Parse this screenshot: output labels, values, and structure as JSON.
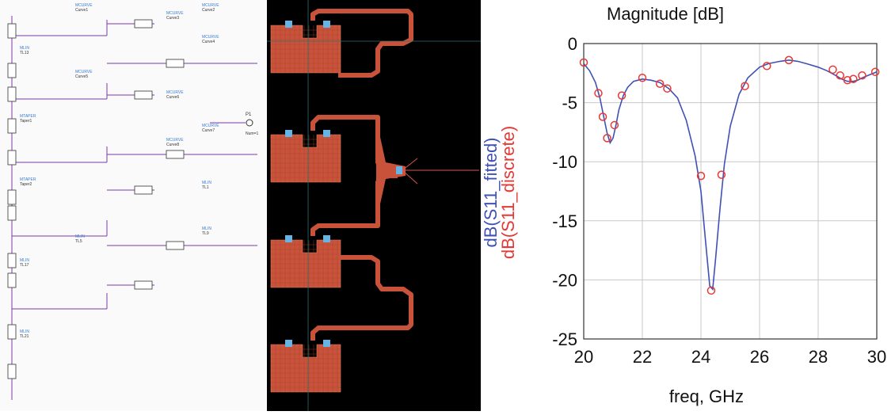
{
  "schematic": {
    "components": [
      {
        "type": "MCURVE",
        "name": "Curve1"
      },
      {
        "type": "MCURVE",
        "name": "Curve2"
      },
      {
        "type": "MCURVE",
        "name": "Curve3"
      },
      {
        "type": "MCURVE",
        "name": "Curve4"
      },
      {
        "type": "MCURVE",
        "name": "Curve5"
      },
      {
        "type": "MCURVE",
        "name": "Curve6"
      },
      {
        "type": "MCURVE",
        "name": "Curve7"
      },
      {
        "type": "MCURVE",
        "name": "Curve8"
      },
      {
        "type": "MLIN",
        "name": "TL1"
      },
      {
        "type": "MLIN",
        "name": "TL5"
      },
      {
        "type": "MLIN",
        "name": "TL9"
      },
      {
        "type": "MLIN",
        "name": "TL13"
      },
      {
        "type": "MTAPER",
        "name": "Taper1"
      },
      {
        "type": "MTAPER",
        "name": "Taper2"
      },
      {
        "type": "MLIN",
        "name": "TL17"
      },
      {
        "type": "MLIN",
        "name": "TL21"
      }
    ],
    "port_label": "P1",
    "port_sub": "Num=1"
  },
  "colors": {
    "fitted": "#3f51b5",
    "discrete": "#e53935",
    "grid": "#c8c8c8",
    "patch": "#c8533a",
    "via": "#66b3e6"
  },
  "chart_data": {
    "type": "line",
    "title": "Magnitude [dB]",
    "xlabel": "freq, GHz",
    "ylabel_lines": [
      "dB(S11_fitted)",
      "dB(S11_discrete)"
    ],
    "xlim": [
      20,
      30
    ],
    "ylim": [
      -25,
      0
    ],
    "xticks": [
      20,
      22,
      24,
      26,
      28,
      30
    ],
    "yticks": [
      0,
      -5,
      -10,
      -15,
      -20,
      -25
    ],
    "grid": true,
    "series": [
      {
        "name": "S11_fitted",
        "style": "line",
        "x": [
          20.0,
          20.2,
          20.4,
          20.55,
          20.7,
          20.8,
          20.9,
          21.0,
          21.1,
          21.2,
          21.35,
          21.5,
          21.7,
          22.0,
          22.3,
          22.6,
          22.9,
          23.2,
          23.5,
          23.8,
          24.0,
          24.15,
          24.3,
          24.4,
          24.5,
          24.65,
          24.8,
          25.0,
          25.3,
          25.6,
          26.0,
          26.3,
          26.7,
          27.0,
          27.3,
          27.6,
          28.0,
          28.3,
          28.6,
          28.8,
          29.0,
          29.2,
          29.35,
          29.5,
          29.7,
          29.9,
          30.0
        ],
        "y": [
          -1.7,
          -2.3,
          -3.3,
          -4.6,
          -6.4,
          -7.6,
          -8.4,
          -8.0,
          -6.9,
          -5.6,
          -4.4,
          -3.7,
          -3.2,
          -3.0,
          -3.1,
          -3.3,
          -3.8,
          -4.6,
          -6.5,
          -9.5,
          -12.5,
          -16.5,
          -20.5,
          -20.8,
          -18.2,
          -14.0,
          -10.2,
          -7.0,
          -4.3,
          -2.9,
          -2.0,
          -1.7,
          -1.5,
          -1.4,
          -1.5,
          -1.7,
          -2.0,
          -2.3,
          -2.7,
          -3.0,
          -3.2,
          -3.2,
          -3.1,
          -2.9,
          -2.7,
          -2.5,
          -2.4
        ]
      },
      {
        "name": "S11_discrete",
        "style": "markers",
        "x": [
          20.0,
          20.5,
          20.65,
          20.8,
          21.05,
          21.3,
          22.0,
          22.6,
          22.85,
          24.0,
          24.35,
          24.7,
          25.5,
          26.25,
          27.0,
          28.5,
          28.75,
          29.0,
          29.2,
          29.5,
          29.95
        ],
        "y": [
          -1.6,
          -4.2,
          -6.2,
          -8.0,
          -6.9,
          -4.4,
          -2.9,
          -3.4,
          -3.8,
          -11.2,
          -20.9,
          -11.1,
          -3.6,
          -1.9,
          -1.4,
          -2.2,
          -2.7,
          -3.1,
          -3.0,
          -2.7,
          -2.4
        ]
      }
    ]
  }
}
